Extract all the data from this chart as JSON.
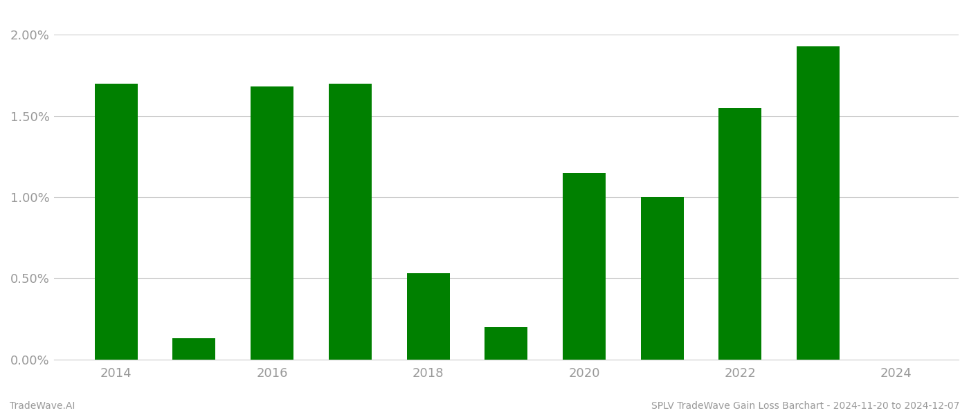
{
  "years": [
    2014,
    2015,
    2016,
    2017,
    2018,
    2019,
    2020,
    2021,
    2022,
    2023
  ],
  "values": [
    0.017,
    0.0013,
    0.0168,
    0.017,
    0.0053,
    0.002,
    0.0115,
    0.01,
    0.0155,
    0.0193
  ],
  "bar_color": "#008000",
  "background_color": "#ffffff",
  "grid_color": "#cccccc",
  "axis_label_color": "#999999",
  "title_text": "SPLV TradeWave Gain Loss Barchart - 2024-11-20 to 2024-12-07",
  "watermark_text": "TradeWave.AI",
  "title_fontsize": 10,
  "watermark_fontsize": 10,
  "ylim": [
    0.0,
    0.0215
  ],
  "yticks": [
    0.0,
    0.005,
    0.01,
    0.015,
    0.02
  ],
  "ytick_labels": [
    "0.00%",
    "0.50%",
    "1.00%",
    "1.50%",
    "2.00%"
  ],
  "xtick_years": [
    2014,
    2016,
    2018,
    2020,
    2022,
    2024
  ],
  "bar_width": 0.55
}
